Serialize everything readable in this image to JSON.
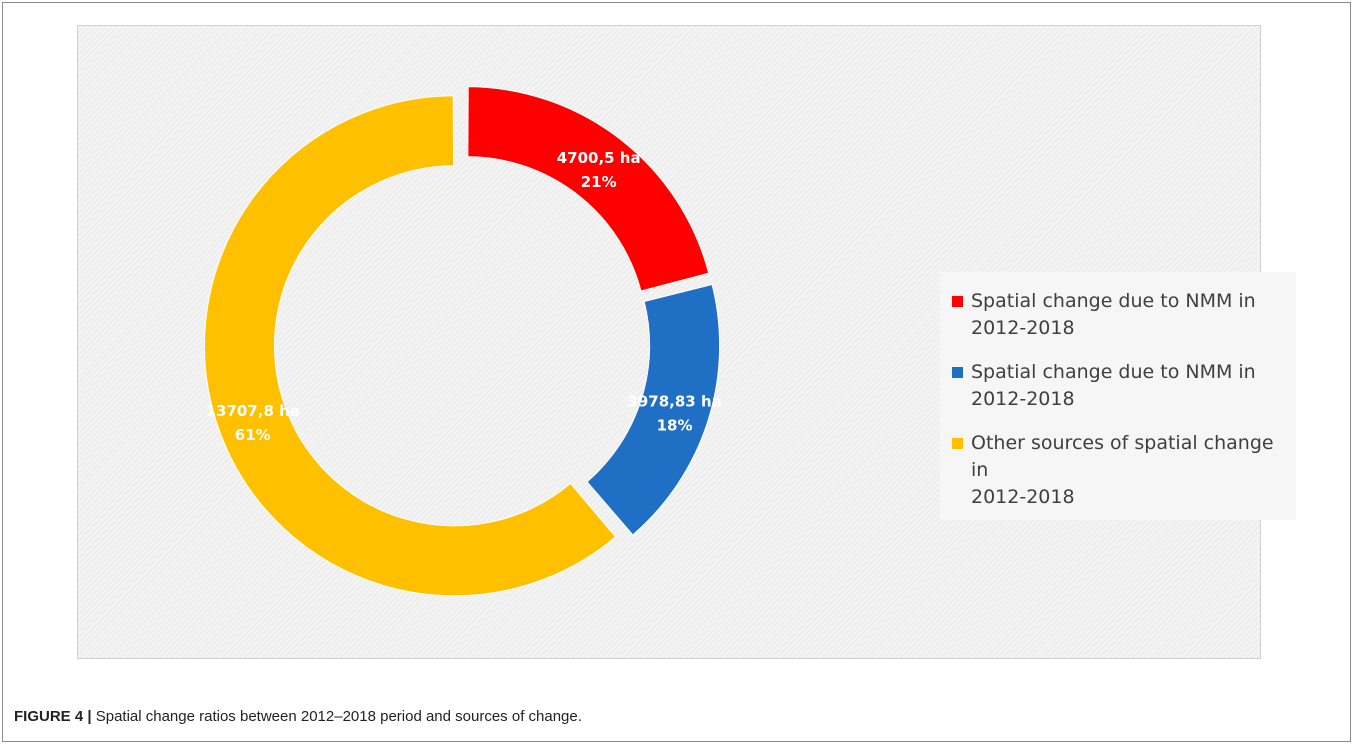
{
  "caption": {
    "figure_label": "FIGURE 4 |",
    "text": "Spatial change ratios between 2012–2018 period and sources of change."
  },
  "chart_data": {
    "type": "pie",
    "variant": "donut",
    "title": "",
    "series": [
      {
        "name": "Spatial change due to NMM in\n2012-2018",
        "value": 4700.5,
        "value_label": "4700,5 ha",
        "percent_label": "21%",
        "color": "#ff0000"
      },
      {
        "name": "Spatial change due to NMM in\n2012-2018",
        "value": 3978.83,
        "value_label": "3978,83 ha",
        "percent_label": "18%",
        "color": "#1f6fc5"
      },
      {
        "name": "Other sources of spatial change in\n2012-2018",
        "value": 13707.8,
        "value_label": "13707,8 ha",
        "percent_label": "61%",
        "color": "#ffc000"
      }
    ],
    "legend_position": "right",
    "exploded": true,
    "background": "#f3f3f3"
  }
}
